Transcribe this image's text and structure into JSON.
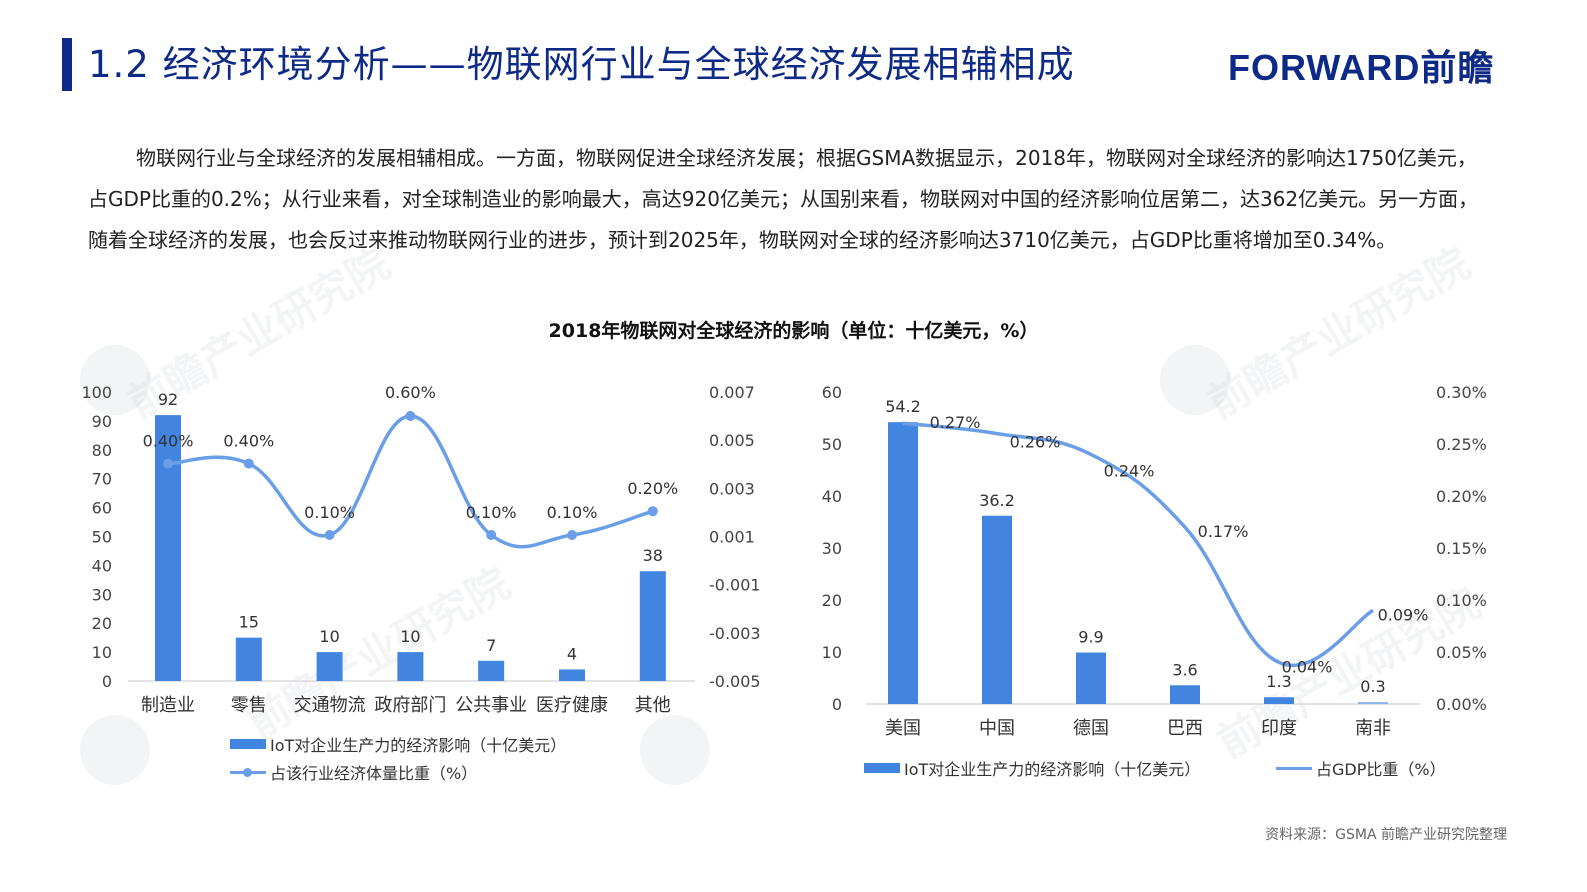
{
  "header": {
    "title": "1.2 经济环境分析——物联网行业与全球经济发展相辅相成",
    "logo": "FORWARD前瞻"
  },
  "intro_text": "物联网行业与全球经济的发展相辅相成。一方面，物联网促进全球经济发展；根据GSMA数据显示，2018年，物联网对全球经济的影响达1750亿美元，占GDP比重的0.2%；从行业来看，对全球制造业的影响最大，高达920亿美元；从国别来看，物联网对中国的经济影响位居第二，达362亿美元。另一方面，随着全球经济的发展，也会反过来推动物联网行业的进步，预计到2025年，物联网对全球的经济影响达3710亿美元，占GDP比重将增加至0.34%。",
  "chart_title": "2018年物联网对全球经济的影响（单位：十亿美元，%）",
  "watermark": "前瞻产业研究院",
  "source": "资料来源：GSMA 前瞻产业研究院整理",
  "colors": {
    "bar": "#4285e0",
    "line": "#6a9ee6",
    "title": "#0e2a87"
  },
  "chart_data": [
    {
      "type": "bar+line",
      "title": "2018年物联网对全球经济的影响（按行业）",
      "categories": [
        "制造业",
        "零售",
        "交通物流",
        "政府部门",
        "公共事业",
        "医疗健康",
        "其他"
      ],
      "series": [
        {
          "name": "IoT对企业生产力的经济影响（十亿美元）",
          "type": "bar",
          "axis": "left",
          "values": [
            92,
            15,
            10,
            10,
            7,
            4,
            38
          ],
          "labels": [
            "92",
            "15",
            "10",
            "10",
            "7",
            "4",
            "38"
          ]
        },
        {
          "name": "占该行业经济体量比重（%）",
          "type": "line",
          "axis": "right",
          "values": [
            0.4,
            0.4,
            0.1,
            0.6,
            0.1,
            0.1,
            0.2
          ],
          "labels": [
            "0.40%",
            "0.40%",
            "0.10%",
            "0.60%",
            "0.10%",
            "0.10%",
            "0.20%"
          ]
        }
      ],
      "y_left": {
        "ticks": [
          "0",
          "10",
          "20",
          "30",
          "40",
          "50",
          "60",
          "70",
          "80",
          "90",
          "100"
        ],
        "ylim": [
          0,
          100
        ]
      },
      "y_right": {
        "ticks": [
          "-0.005",
          "-0.003",
          "-0.001",
          "0.001",
          "0.003",
          "0.005",
          "0.007"
        ],
        "ylim": [
          -0.005,
          0.007
        ]
      },
      "legend_position": "bottom",
      "grid": false
    },
    {
      "type": "bar+line",
      "title": "2018年物联网对全球经济的影响（按国家）",
      "categories": [
        "美国",
        "中国",
        "德国",
        "巴西",
        "印度",
        "南非"
      ],
      "series": [
        {
          "name": "IoT对企业生产力的经济影响（十亿美元）",
          "type": "bar",
          "axis": "left",
          "values": [
            54.2,
            36.2,
            9.9,
            3.6,
            1.3,
            0.3
          ],
          "labels": [
            "54.2",
            "36.2",
            "9.9",
            "3.6",
            "1.3",
            "0.3"
          ]
        },
        {
          "name": "占GDP比重（%）",
          "type": "line",
          "axis": "right",
          "values": [
            0.27,
            0.26,
            0.24,
            0.17,
            0.04,
            0.09
          ],
          "labels": [
            "0.27%",
            "0.26%",
            "0.24%",
            "0.17%",
            "0.04%",
            "0.09%"
          ]
        }
      ],
      "y_left": {
        "ticks": [
          "0",
          "10",
          "20",
          "30",
          "40",
          "50",
          "60"
        ],
        "ylim": [
          0,
          60
        ]
      },
      "y_right": {
        "ticks": [
          "0.00%",
          "0.05%",
          "0.10%",
          "0.15%",
          "0.20%",
          "0.25%",
          "0.30%"
        ],
        "ylim": [
          0,
          0.3
        ]
      },
      "legend_position": "bottom",
      "grid": false
    }
  ]
}
